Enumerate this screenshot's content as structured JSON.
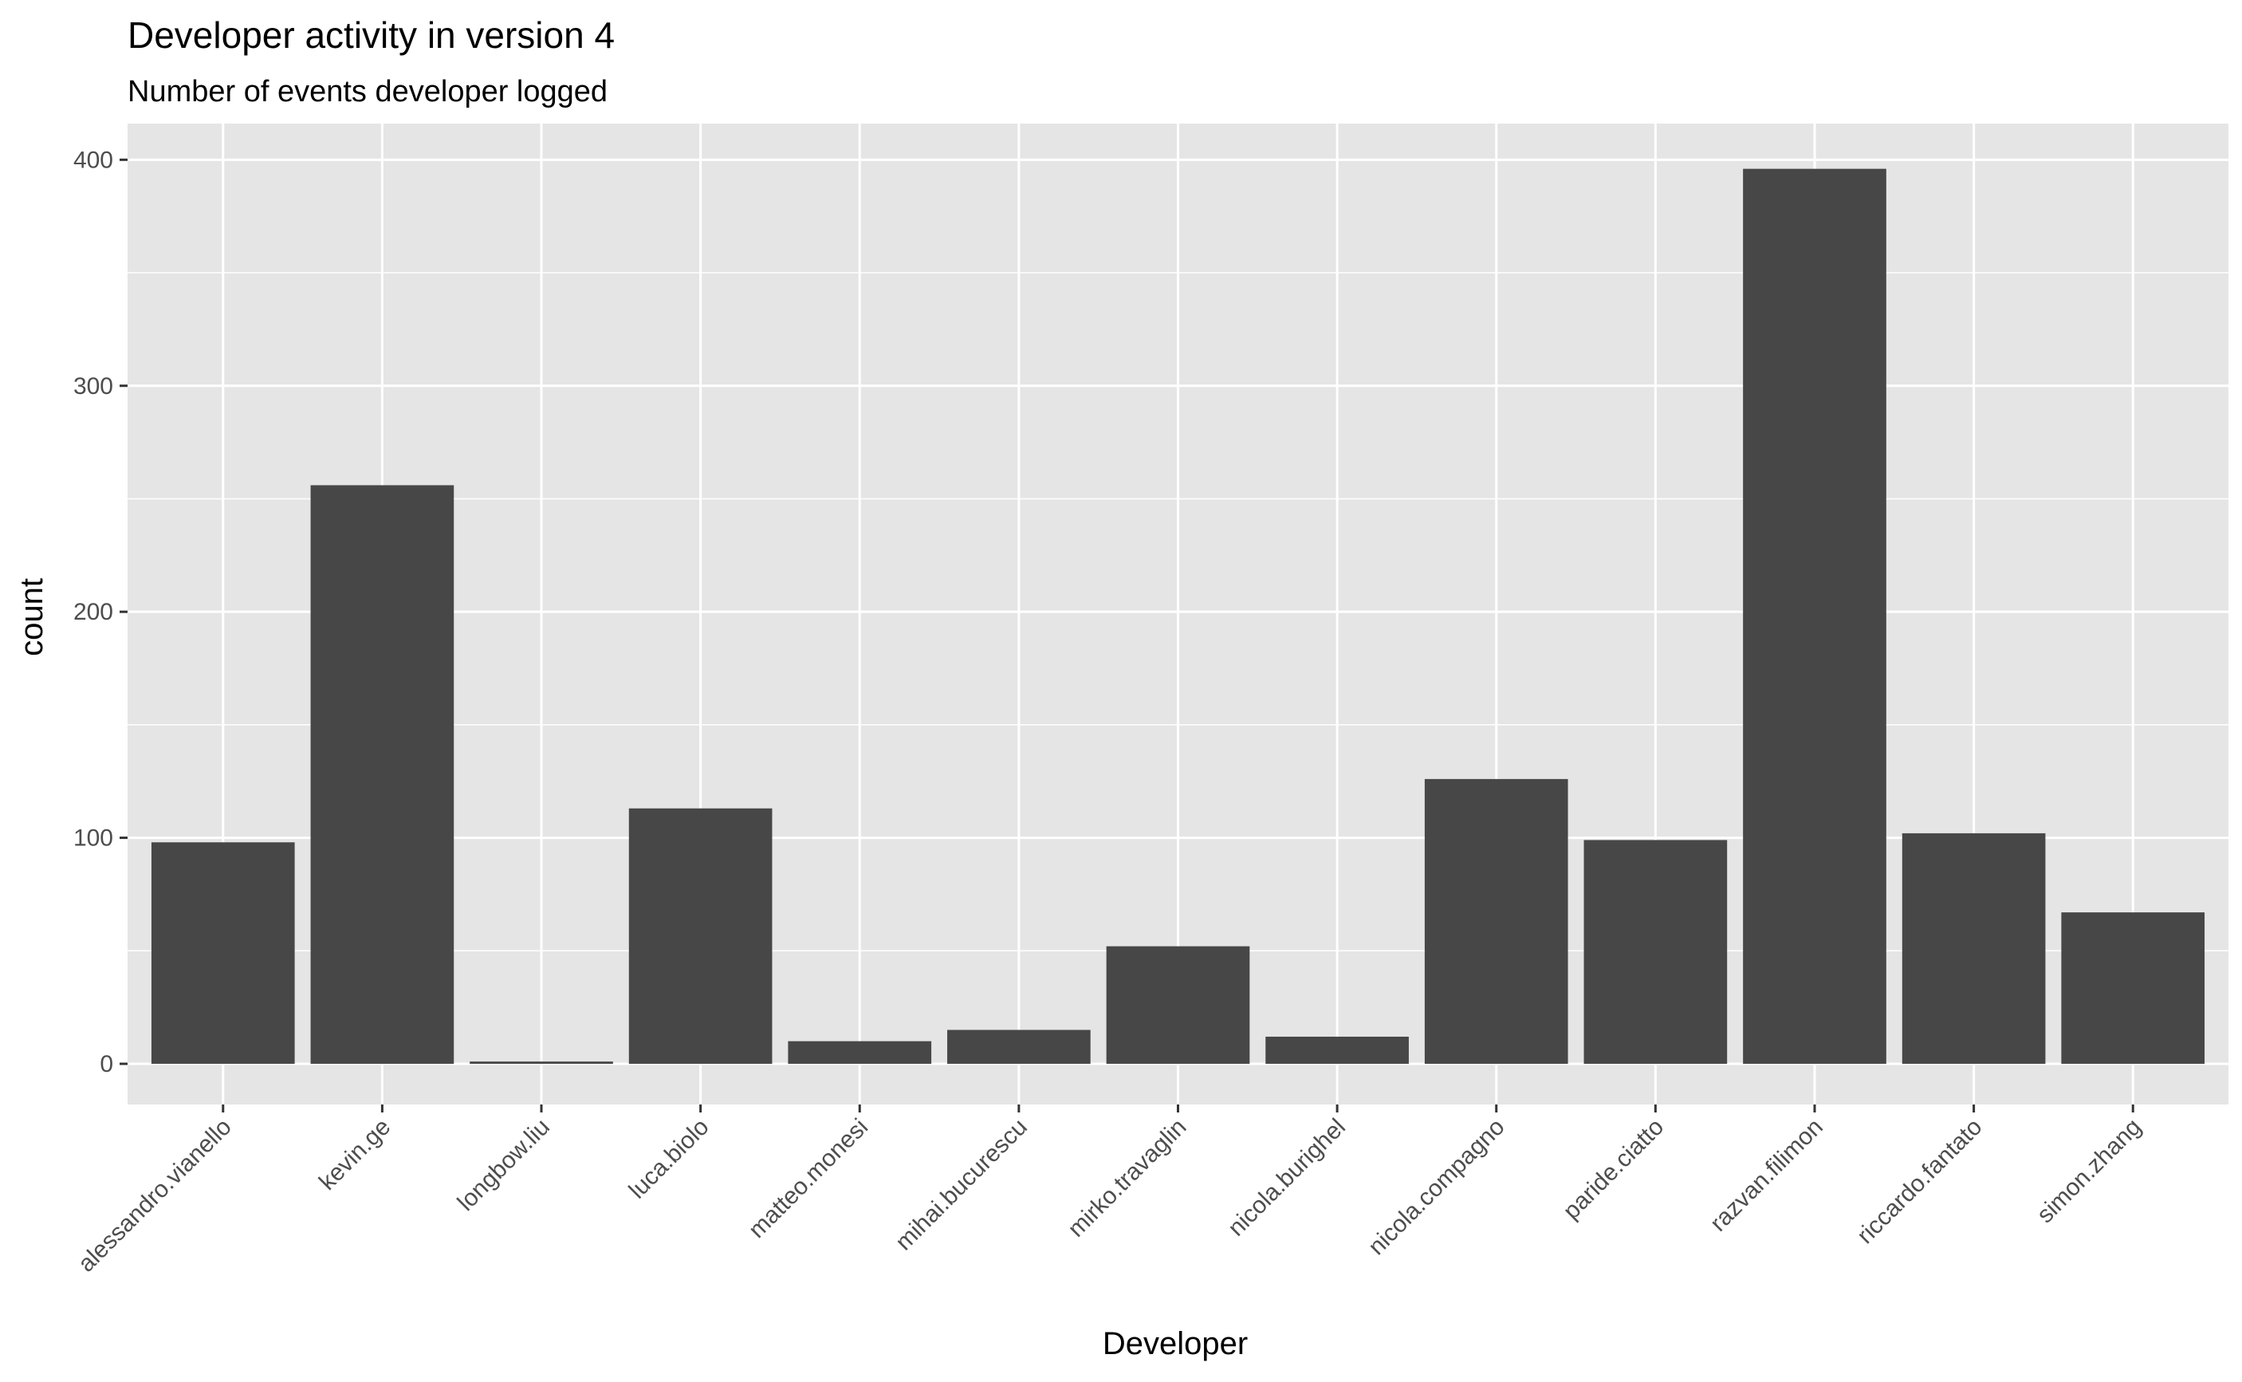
{
  "chart_data": {
    "type": "bar",
    "title": "Developer activity in version 4",
    "subtitle": "Number of events developer logged",
    "xlabel": "Developer",
    "ylabel": "count",
    "categories": [
      "alessandro.vianello",
      "kevin.ge",
      "longbow.liu",
      "luca.biolo",
      "matteo.monesi",
      "mihai.bucurescu",
      "mirko.travaglin",
      "nicola.burighel",
      "nicola.compagno",
      "paride.ciatto",
      "razvan.filimon",
      "riccardo.fantato",
      "simon.zhang"
    ],
    "values": [
      98,
      256,
      1,
      113,
      10,
      15,
      52,
      12,
      126,
      99,
      396,
      102,
      67
    ],
    "ylim": [
      -18,
      416
    ],
    "yticks": [
      0,
      100,
      200,
      300,
      400
    ],
    "grid": true,
    "legend": "none",
    "colors": {
      "panel_background": "#E5E5E5",
      "grid_major": "#FFFFFF",
      "bar_fill": "#474747",
      "tick_text": "#4D4D4D",
      "tick_mark": "#333333"
    }
  }
}
